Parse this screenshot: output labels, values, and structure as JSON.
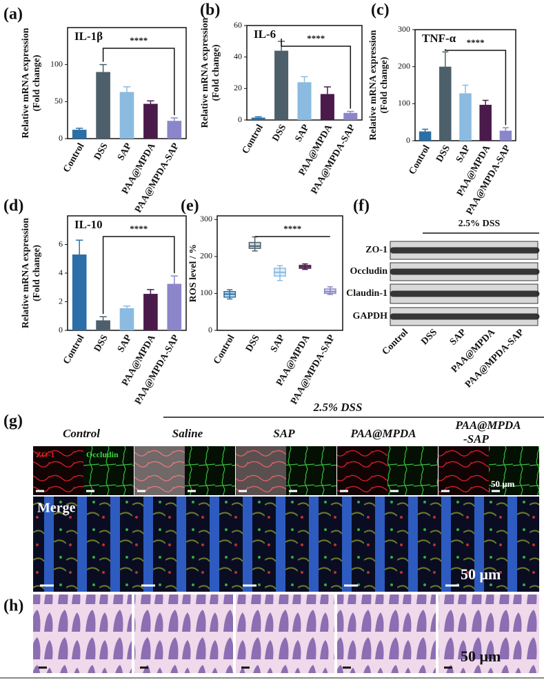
{
  "chart_data": [
    {
      "type": "bar",
      "panel": "(a)",
      "title": "IL-1β",
      "y_label": [
        "Relative mRNA expression",
        "(Fold change)"
      ],
      "categories": [
        "Control",
        "DSS",
        "SAP",
        "PAA@MPDA",
        "PAA@MPDA-SAP"
      ],
      "colors": [
        "#2a6fa8",
        "#4d5f6b",
        "#8bbbe0",
        "#4a1a4a",
        "#8b86c9"
      ],
      "values": [
        12,
        90,
        63,
        47,
        24
      ],
      "errors": [
        2,
        10,
        7,
        4,
        4
      ],
      "ylim": [
        0,
        150
      ],
      "yticks": [
        0,
        50,
        100
      ],
      "significance": "****"
    },
    {
      "type": "bar",
      "panel": "(b)",
      "title": "IL-6",
      "y_label": [
        "Relative mRNA expression",
        "(Fold change)"
      ],
      "categories": [
        "Control",
        "DSS",
        "SAP",
        "PAA@MPDA",
        "PAA@MPDA-SAP"
      ],
      "colors": [
        "#2a6fa8",
        "#4d5f6b",
        "#8bbbe0",
        "#4a1a4a",
        "#8b86c9"
      ],
      "values": [
        1.5,
        44,
        24,
        16.5,
        4.5
      ],
      "errors": [
        0.5,
        6,
        3.5,
        4.5,
        1
      ],
      "ylim": [
        0,
        60
      ],
      "yticks": [
        0,
        20,
        40,
        60
      ],
      "significance": "****"
    },
    {
      "type": "bar",
      "panel": "(c)",
      "title": "TNF-α",
      "y_label": [
        "Relative mRNA expression",
        "(Fold change)"
      ],
      "categories": [
        "Control",
        "DSS",
        "SAP",
        "PAA@MPDA",
        "PAA@MPDA-SAP"
      ],
      "colors": [
        "#2a6fa8",
        "#4d5f6b",
        "#8bbbe0",
        "#4a1a4a",
        "#8b86c9"
      ],
      "values": [
        25,
        200,
        128,
        97,
        27
      ],
      "errors": [
        6,
        40,
        22,
        12,
        8
      ],
      "ylim": [
        0,
        300
      ],
      "yticks": [
        0,
        100,
        200,
        300
      ],
      "significance": "****"
    },
    {
      "type": "bar",
      "panel": "(d)",
      "title": "IL-10",
      "y_label": [
        "Relative mRNA expression",
        "(Fold change)"
      ],
      "categories": [
        "Control",
        "DSS",
        "SAP",
        "PAA@MPDA",
        "PAA@MPDA-SAP"
      ],
      "colors": [
        "#2a6fa8",
        "#4d5f6b",
        "#8bbbe0",
        "#4a1a4a",
        "#8b86c9"
      ],
      "values": [
        5.3,
        0.7,
        1.55,
        2.55,
        3.25
      ],
      "errors": [
        1,
        0.25,
        0.15,
        0.3,
        0.55
      ],
      "ylim": [
        0,
        8
      ],
      "yticks": [
        0,
        2,
        4,
        6
      ],
      "significance": "****"
    },
    {
      "type": "box",
      "panel": "(e)",
      "y_label": [
        "ROS level / %"
      ],
      "categories": [
        "Control",
        "DSS",
        "SAP",
        "PAA@MPDA",
        "PAA@MPDA-SAP"
      ],
      "colors": [
        "#2a6fa8",
        "#4d5f6b",
        "#8bbbe0",
        "#4a1a4a",
        "#8b86c9"
      ],
      "min": [
        85,
        215,
        135,
        165,
        97
      ],
      "q1": [
        90,
        222,
        147,
        168,
        100
      ],
      "median": [
        98,
        228,
        157,
        172,
        105
      ],
      "q3": [
        105,
        238,
        168,
        176,
        112
      ],
      "max": [
        110,
        253,
        175,
        180,
        118
      ],
      "ylim": [
        0,
        310
      ],
      "yticks": [
        0,
        100,
        200,
        300
      ],
      "significance": "****"
    }
  ],
  "western_blot": {
    "panel": "(f)",
    "group_label": "2.5% DSS",
    "rows": [
      "ZO-1",
      "Occludin",
      "Claudin-1",
      "GAPDH"
    ],
    "columns": [
      "Control",
      "DSS",
      "SAP",
      "PAA@MPDA",
      "PAA@MPDA-SAP"
    ]
  },
  "immunofluorescence": {
    "panel": "(g)",
    "group_label": "2.5% DSS",
    "columns": [
      [
        "Control"
      ],
      [
        "Saline"
      ],
      [
        "SAP"
      ],
      [
        "PAA@MPDA"
      ],
      [
        "PAA@MPDA",
        "-SAP"
      ]
    ],
    "channels": [
      "ZO-1",
      "Occludin",
      "Merge"
    ],
    "scale_bar": "50 μm"
  },
  "histology": {
    "panel": "(h)",
    "scale_bar": "50 μm"
  }
}
